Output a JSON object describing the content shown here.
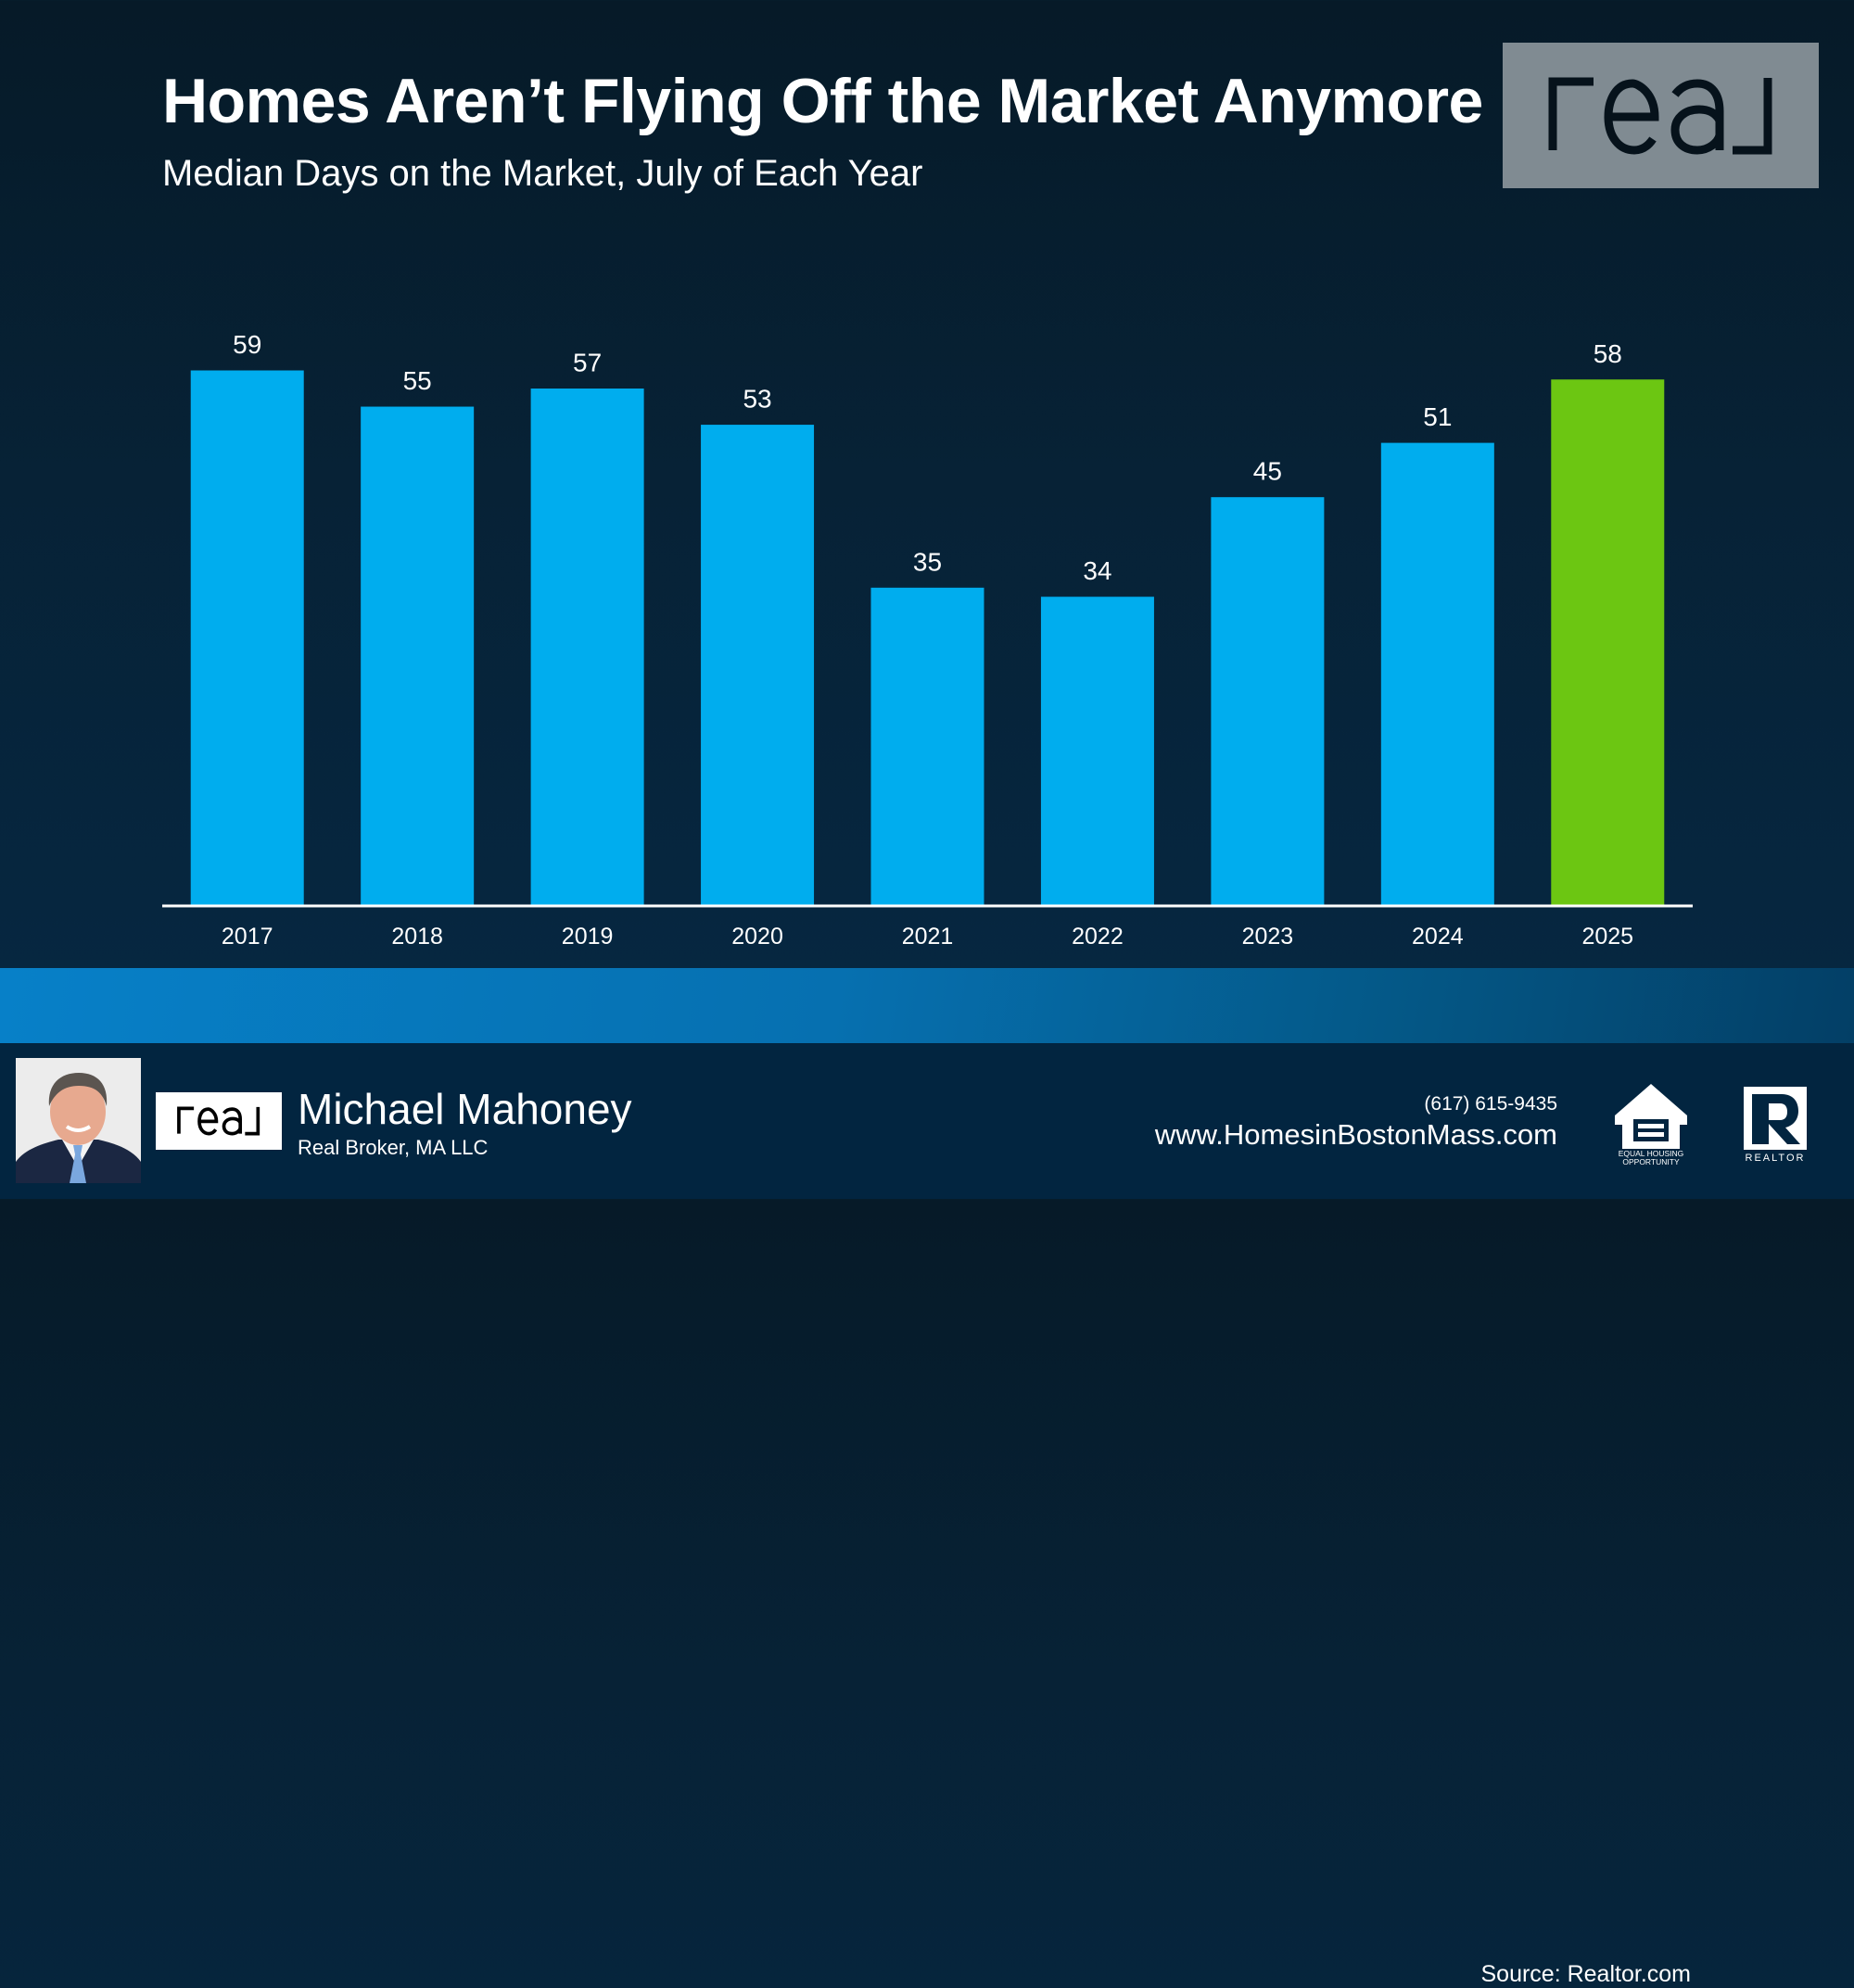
{
  "header": {
    "title": "Homes Aren’t Flying Off the Market Anymore",
    "subtitle": "Median Days on the Market, July of Each Year",
    "brand_logo": "real"
  },
  "chart_data": {
    "type": "bar",
    "title": "Homes Aren’t Flying Off the Market Anymore",
    "subtitle": "Median Days on the Market, July of Each Year",
    "xlabel": "",
    "ylabel": "",
    "categories": [
      "2017",
      "2018",
      "2019",
      "2020",
      "2021",
      "2022",
      "2023",
      "2024",
      "2025"
    ],
    "values": [
      59,
      55,
      57,
      53,
      35,
      34,
      45,
      51,
      58
    ],
    "data_labels": [
      "59",
      "55",
      "57",
      "53",
      "35",
      "34",
      "45",
      "51",
      "58"
    ],
    "ylim": [
      0,
      60
    ],
    "grid": false,
    "legend": "none",
    "colors": {
      "default": "#00adee",
      "highlight": "#6cc612",
      "highlight_category": "2025"
    }
  },
  "source": "Source: Realtor.com",
  "footer": {
    "agent_name": "Michael Mahoney",
    "agent_company": "Real Broker, MA LLC",
    "brand_logo": "real",
    "phone": "(617) 615-9435",
    "website": "www.HomesinBostonMass.com",
    "eho_label_1": "EQUAL HOUSING",
    "eho_label_2": "OPPORTUNITY",
    "realtor_label": "REALTOR"
  },
  "colors": {
    "background": "#072236",
    "band": "#0780c8",
    "footer": "#022540",
    "logo_box": "#808b92"
  }
}
